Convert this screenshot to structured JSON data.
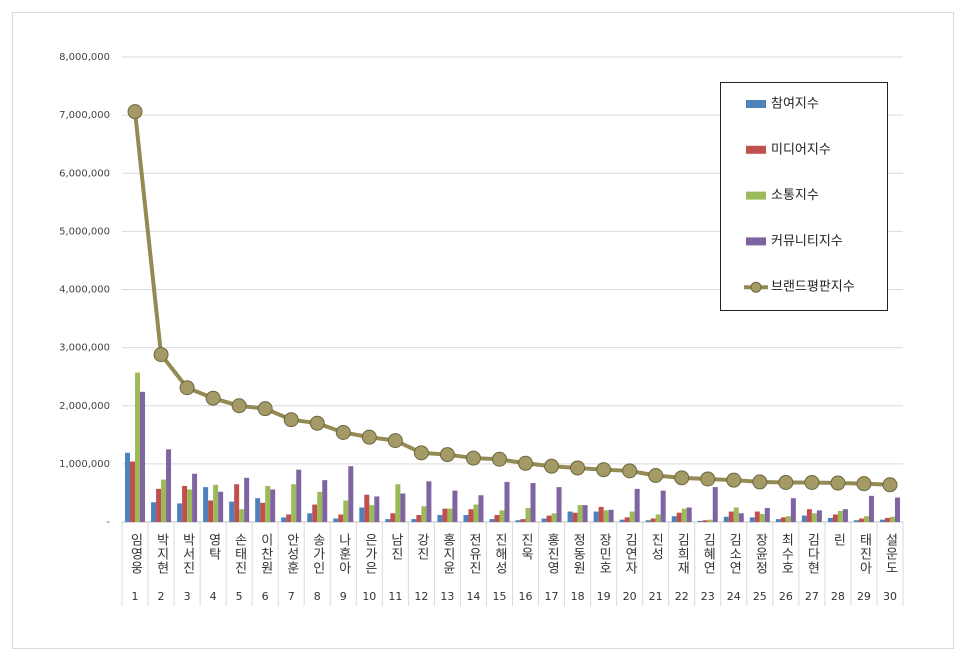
{
  "chart_data": {
    "type": "combo",
    "categories": [
      "임영웅",
      "박지현",
      "박서진",
      "영탁",
      "손태진",
      "이찬원",
      "안성훈",
      "송가인",
      "나훈아",
      "은가은",
      "남진",
      "강진",
      "홍지윤",
      "전유진",
      "진해성",
      "진욱",
      "홍진영",
      "정동원",
      "장민호",
      "김연자",
      "진성",
      "김희재",
      "김혜연",
      "김소연",
      "장윤정",
      "최수호",
      "김다현",
      "린",
      "태진아",
      "설운도"
    ],
    "ranks": [
      1,
      2,
      3,
      4,
      5,
      6,
      7,
      8,
      9,
      10,
      11,
      12,
      13,
      14,
      15,
      16,
      17,
      18,
      19,
      20,
      21,
      22,
      23,
      24,
      25,
      26,
      27,
      28,
      29,
      30
    ],
    "series": [
      {
        "name": "참여지수",
        "color": "#4f81bd",
        "type": "bar",
        "values": [
          1190000,
          340000,
          320000,
          600000,
          350000,
          410000,
          80000,
          150000,
          60000,
          250000,
          50000,
          50000,
          120000,
          120000,
          50000,
          30000,
          60000,
          180000,
          180000,
          40000,
          30000,
          100000,
          20000,
          90000,
          80000,
          50000,
          110000,
          70000,
          30000,
          40000
        ]
      },
      {
        "name": "미디어지수",
        "color": "#c0504d",
        "type": "bar",
        "values": [
          1040000,
          570000,
          620000,
          370000,
          650000,
          330000,
          130000,
          300000,
          130000,
          470000,
          150000,
          120000,
          230000,
          220000,
          120000,
          50000,
          110000,
          160000,
          260000,
          80000,
          60000,
          160000,
          30000,
          180000,
          180000,
          80000,
          220000,
          130000,
          60000,
          70000
        ]
      },
      {
        "name": "소통지수",
        "color": "#9bbb59",
        "type": "bar",
        "values": [
          2570000,
          730000,
          560000,
          640000,
          220000,
          620000,
          650000,
          520000,
          370000,
          290000,
          650000,
          270000,
          230000,
          300000,
          200000,
          240000,
          150000,
          290000,
          200000,
          180000,
          130000,
          230000,
          40000,
          250000,
          140000,
          100000,
          150000,
          190000,
          100000,
          90000
        ]
      },
      {
        "name": "커뮤니티지수",
        "color": "#8064a2",
        "type": "bar",
        "values": [
          2240000,
          1250000,
          830000,
          520000,
          760000,
          560000,
          900000,
          720000,
          960000,
          440000,
          490000,
          700000,
          540000,
          460000,
          690000,
          670000,
          600000,
          290000,
          210000,
          570000,
          540000,
          250000,
          600000,
          150000,
          240000,
          410000,
          200000,
          220000,
          450000,
          420000
        ]
      },
      {
        "name": "브랜드평판지수",
        "color": "#948a54",
        "type": "line",
        "values": [
          7060000,
          2880000,
          2310000,
          2130000,
          2000000,
          1950000,
          1760000,
          1700000,
          1540000,
          1460000,
          1400000,
          1190000,
          1160000,
          1100000,
          1080000,
          1010000,
          960000,
          930000,
          900000,
          880000,
          800000,
          760000,
          740000,
          720000,
          690000,
          680000,
          680000,
          670000,
          660000,
          640000
        ]
      }
    ],
    "ylim": [
      0,
      8000000
    ],
    "yticks": [
      {
        "value": 0,
        "label": "-"
      },
      {
        "value": 1000000,
        "label": "1,000,000"
      },
      {
        "value": 2000000,
        "label": "2,000,000"
      },
      {
        "value": 3000000,
        "label": "3,000,000"
      },
      {
        "value": 4000000,
        "label": "4,000,000"
      },
      {
        "value": 5000000,
        "label": "5,000,000"
      },
      {
        "value": 6000000,
        "label": "6,000,000"
      },
      {
        "value": 7000000,
        "label": "7,000,000"
      },
      {
        "value": 8000000,
        "label": "8,000,000"
      }
    ],
    "grid": true,
    "legend": "right"
  }
}
